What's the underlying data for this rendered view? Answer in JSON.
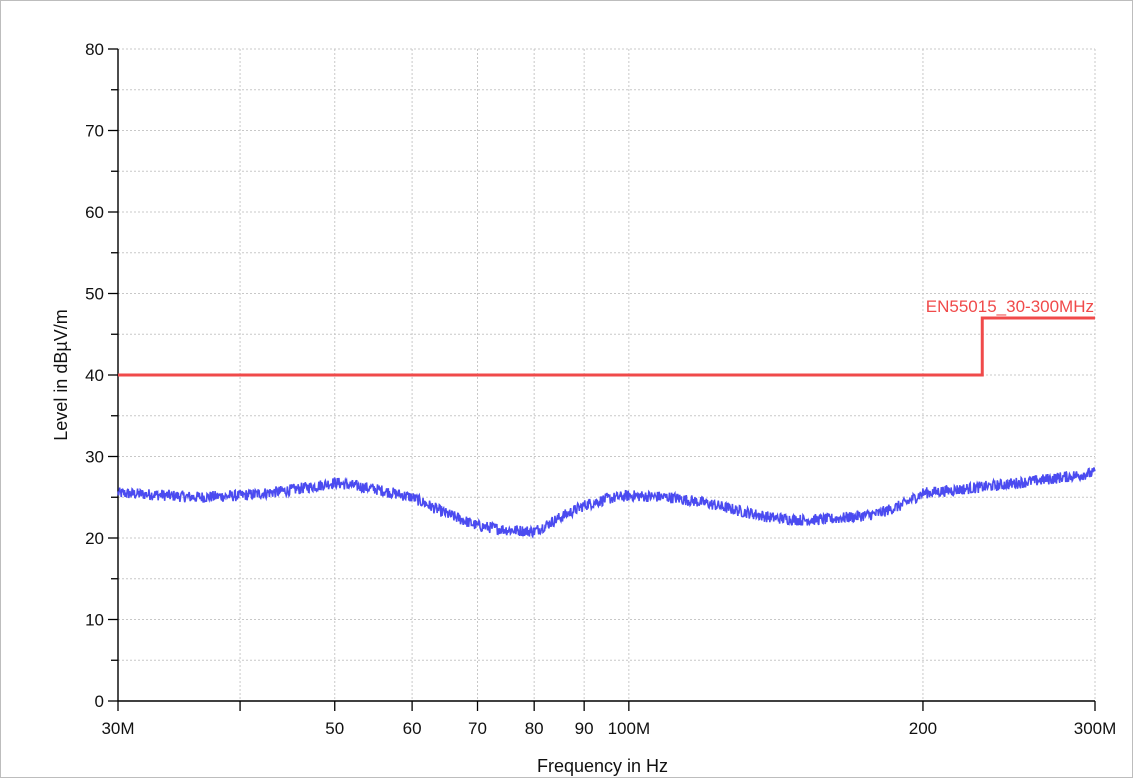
{
  "chart_data": {
    "type": "line",
    "xlabel": "Frequency in Hz",
    "ylabel": "Level in dBµV/m",
    "x_scale": "log",
    "xlim": [
      30,
      300
    ],
    "ylim": [
      0,
      80
    ],
    "grid": true,
    "x_ticks": [
      {
        "value": 30,
        "label": "30M"
      },
      {
        "value": 40,
        "label": ""
      },
      {
        "value": 50,
        "label": "50"
      },
      {
        "value": 60,
        "label": "60"
      },
      {
        "value": 70,
        "label": "70"
      },
      {
        "value": 80,
        "label": "80"
      },
      {
        "value": 90,
        "label": "90"
      },
      {
        "value": 100,
        "label": "100M"
      },
      {
        "value": 200,
        "label": "200"
      },
      {
        "value": 300,
        "label": "300M"
      }
    ],
    "y_ticks": [
      {
        "value": 0,
        "label": "0"
      },
      {
        "value": 10,
        "label": "10"
      },
      {
        "value": 20,
        "label": "20"
      },
      {
        "value": 30,
        "label": "30"
      },
      {
        "value": 40,
        "label": "40"
      },
      {
        "value": 50,
        "label": "50"
      },
      {
        "value": 60,
        "label": "60"
      },
      {
        "value": 70,
        "label": "70"
      },
      {
        "value": 80,
        "label": "80"
      }
    ],
    "series": [
      {
        "name": "EN55015_30-300MHz",
        "kind": "limit",
        "color": "#f04a4a",
        "x": [
          30,
          230,
          230,
          300
        ],
        "y": [
          40,
          40,
          47,
          47
        ]
      },
      {
        "kind": "measurement",
        "color": "#4b4bf0",
        "x": [
          30,
          33,
          36,
          40,
          44,
          48,
          50,
          55,
          60,
          65,
          70,
          75,
          80,
          85,
          90,
          95,
          100,
          110,
          120,
          130,
          140,
          150,
          160,
          170,
          180,
          190,
          200,
          220,
          240,
          260,
          280,
          300
        ],
        "y": [
          25.5,
          25.3,
          25.0,
          25.2,
          25.7,
          26.4,
          26.8,
          26.0,
          25.0,
          23.0,
          21.5,
          21.0,
          20.8,
          22.5,
          24.0,
          24.8,
          25.2,
          25.0,
          24.3,
          23.3,
          22.5,
          22.2,
          22.3,
          22.6,
          23.0,
          24.0,
          25.5,
          26.0,
          26.5,
          27.0,
          27.5,
          28.0
        ],
        "noise_amplitude": 0.7
      }
    ]
  }
}
